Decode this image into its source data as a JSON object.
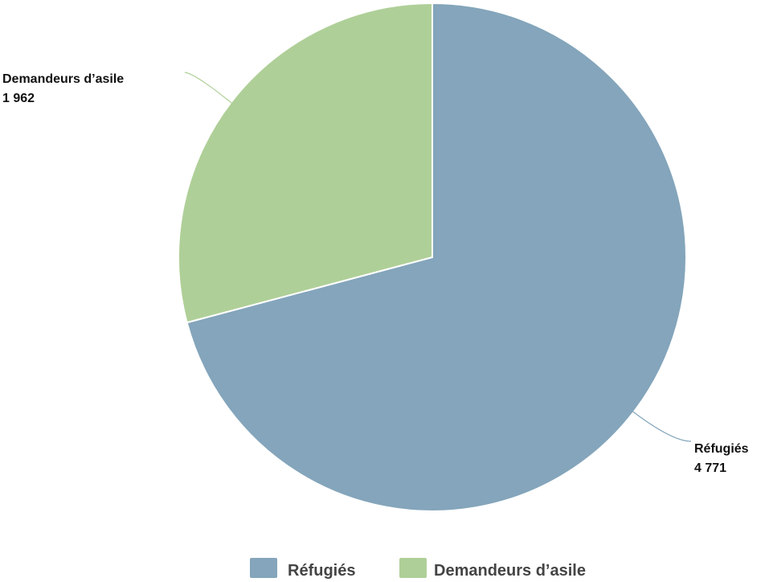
{
  "chart_data": {
    "type": "pie",
    "categories": [
      "Réfugiés",
      "Demandeurs d’asile"
    ],
    "values": [
      4771,
      1962
    ],
    "value_labels": [
      "4 771",
      "1 962"
    ],
    "colors": [
      "#84a5bb",
      "#afcf98"
    ],
    "legend": {
      "position": "bottom",
      "entries": [
        "Réfugiés",
        "Demandeurs d’asile"
      ]
    }
  }
}
